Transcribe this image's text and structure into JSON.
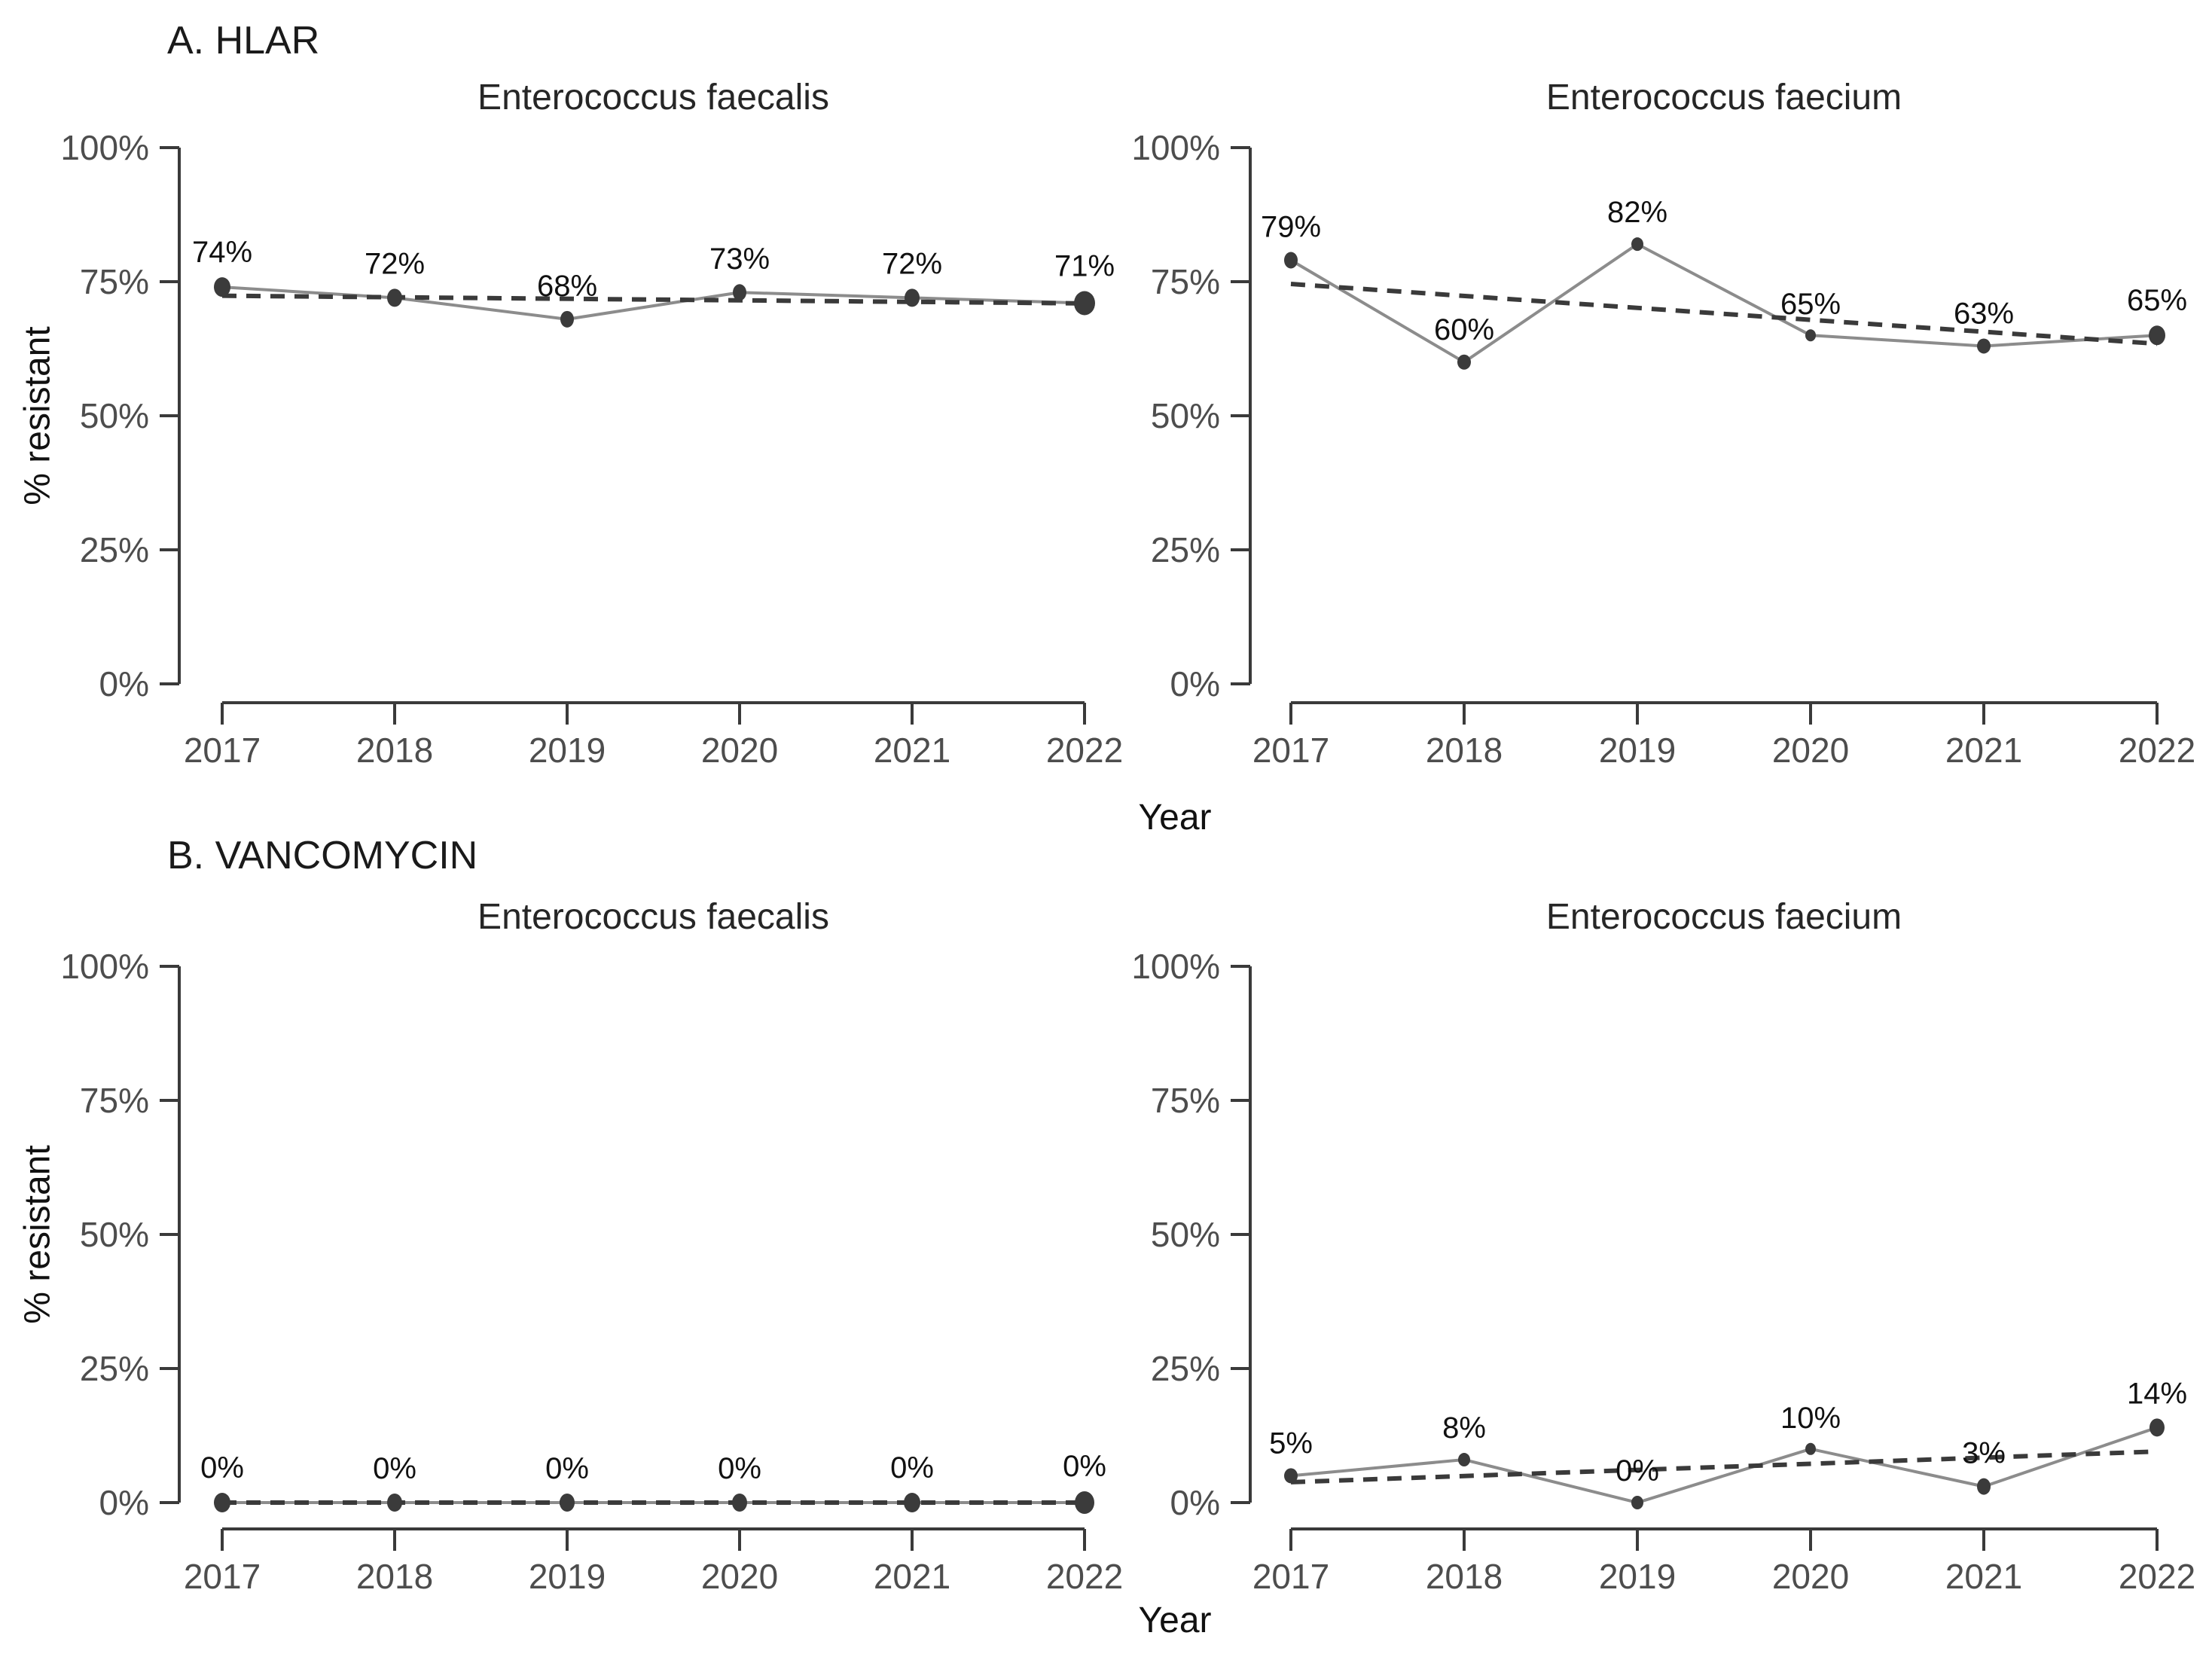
{
  "figure": {
    "group_a_label": "A. HLAR",
    "group_b_label": "B. VANCOMYCIN",
    "y_axis_title": "% resistant",
    "x_axis_title": "Year",
    "colors": {
      "point": "#3b3b3b",
      "solid_line": "#8c8c8c",
      "trend_line": "#3a3a3a",
      "axis_line": "#3a3a3a",
      "tick_label": "#4d4d4d",
      "data_label": "#111111"
    }
  },
  "axes": {
    "ylim": [
      0,
      100
    ],
    "y_tick_values": [
      0,
      25,
      50,
      75,
      100
    ],
    "y_tick_labels": [
      "0%",
      "25%",
      "50%",
      "75%",
      "100%"
    ],
    "x_tick_labels": [
      "2017",
      "2018",
      "2019",
      "2020",
      "2021",
      "2022"
    ],
    "grid": false,
    "legend": "none"
  },
  "chart_data": [
    {
      "type": "line",
      "group": "A. HLAR",
      "title": "Enterococcus faecalis",
      "row": 0,
      "col": 0,
      "x": [
        2017,
        2018,
        2019,
        2020,
        2021,
        2022
      ],
      "values": [
        74,
        72,
        68,
        73,
        72,
        71
      ],
      "labels": [
        "74%",
        "72%",
        "68%",
        "73%",
        "72%",
        "71%"
      ],
      "point_sizes": [
        13,
        12,
        11,
        11,
        12,
        16
      ],
      "trend": "linear-dashed"
    },
    {
      "type": "line",
      "group": "A. HLAR",
      "title": "Enterococcus faecium",
      "row": 0,
      "col": 1,
      "x": [
        2017,
        2018,
        2019,
        2020,
        2021,
        2022
      ],
      "values": [
        79,
        60,
        82,
        65,
        63,
        65
      ],
      "labels": [
        "79%",
        "60%",
        "82%",
        "65%",
        "63%",
        "65%"
      ],
      "point_sizes": [
        11,
        10,
        9,
        8,
        10,
        13
      ],
      "trend": "linear-dashed"
    },
    {
      "type": "line",
      "group": "B. VANCOMYCIN",
      "title": "Enterococcus faecalis",
      "row": 1,
      "col": 0,
      "x": [
        2017,
        2018,
        2019,
        2020,
        2021,
        2022
      ],
      "values": [
        0,
        0,
        0,
        0,
        0,
        0
      ],
      "labels": [
        "0%",
        "0%",
        "0%",
        "0%",
        "0%",
        "0%"
      ],
      "point_sizes": [
        13,
        12,
        12,
        12,
        13,
        15
      ],
      "trend": "linear-dashed"
    },
    {
      "type": "line",
      "group": "B. VANCOMYCIN",
      "title": "Enterococcus faecium",
      "row": 1,
      "col": 1,
      "x": [
        2017,
        2018,
        2019,
        2020,
        2021,
        2022
      ],
      "values": [
        5,
        8,
        0,
        10,
        3,
        14
      ],
      "labels": [
        "5%",
        "8%",
        "0%",
        "10%",
        "3%",
        "14%"
      ],
      "point_sizes": [
        10,
        9,
        9,
        8,
        11,
        12
      ],
      "trend": "linear-dashed"
    }
  ]
}
